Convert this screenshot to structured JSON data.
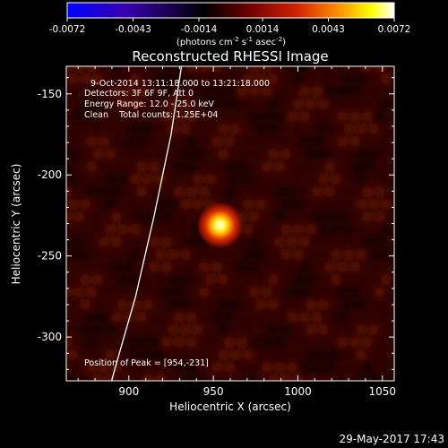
{
  "chart_data": {
    "type": "heatmap",
    "title": "Reconstructed RHESSI Image",
    "xlabel": "Heliocentric X (arcsec)",
    "ylabel": "Heliocentric Y (arcsec)",
    "xlim": [
      863,
      1057
    ],
    "ylim": [
      -327,
      -133
    ],
    "x_ticks": [
      900,
      950,
      1000,
      1050
    ],
    "y_ticks": [
      -150,
      -200,
      -250,
      -300
    ],
    "colorbar": {
      "min": -0.0072,
      "max": 0.0072,
      "ticks": [
        "-0.0072",
        "-0.0043",
        "-0.0014",
        "0.0014",
        "0.0043",
        "0.0072"
      ],
      "unit_label": "(photons cm",
      "unit_sup1": "-2",
      "unit_mid": " s",
      "unit_sup2": "-1",
      "unit_mid2": " asec",
      "unit_sup3": "-2",
      "unit_end": ")",
      "colormap": [
        "#0000ff",
        "#4400aa",
        "#000000",
        "#6a0000",
        "#d02000",
        "#ff9000",
        "#ffff00",
        "#ffffff"
      ]
    },
    "source": {
      "x": 954,
      "y": -231,
      "peak": 0.0072
    },
    "limb_curve": [
      [
        932,
        -127
      ],
      [
        925,
        -175
      ],
      [
        915,
        -225
      ],
      [
        904,
        -275
      ],
      [
        893,
        -315
      ],
      [
        889,
        -330
      ]
    ],
    "annotations": {
      "time": "9-Oct-2014 13:11:18.000 to 13:21:18.000",
      "detectors": "Detectors: 3F 6F 9F, Att 0",
      "energy": "Energy Range: 12.0 - 25.0 keV",
      "clean": "Clean    Total counts: 1.25E+04",
      "peak": "Position of Peak = [954,-231]"
    }
  },
  "timestamp": "29-May-2017 17:43"
}
